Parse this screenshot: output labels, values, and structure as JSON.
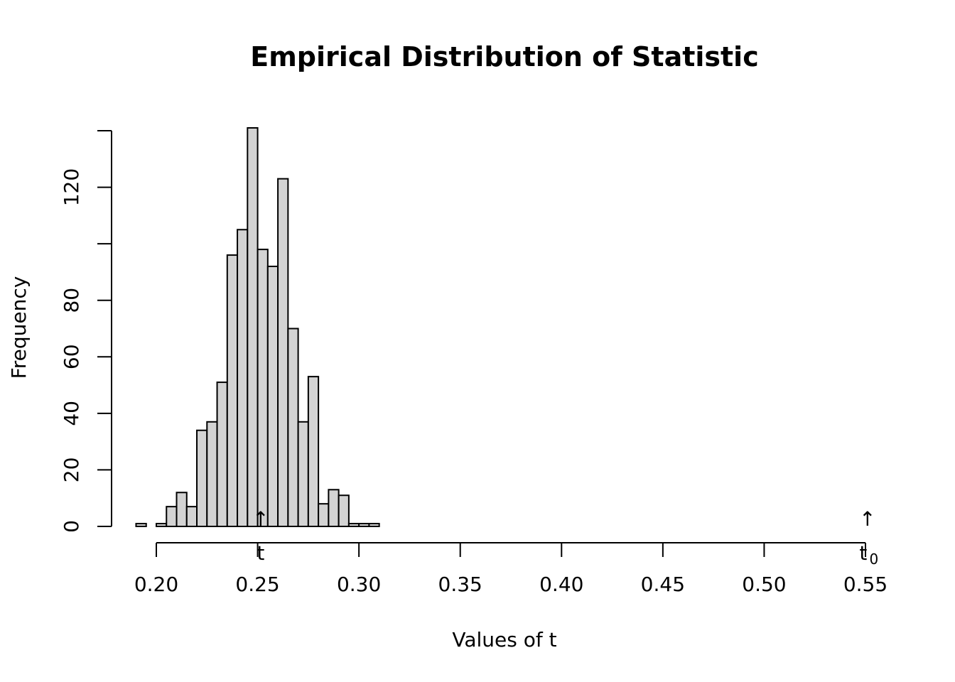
{
  "chart_data": {
    "type": "bar",
    "title": "Empirical Distribution of Statistic",
    "xlabel": "Values of t",
    "ylabel": "Frequency",
    "bin_width": 0.005,
    "bins": [
      {
        "start": 0.19,
        "count": 1
      },
      {
        "start": 0.195,
        "count": 0
      },
      {
        "start": 0.2,
        "count": 1
      },
      {
        "start": 0.205,
        "count": 7
      },
      {
        "start": 0.21,
        "count": 12
      },
      {
        "start": 0.215,
        "count": 7
      },
      {
        "start": 0.22,
        "count": 34
      },
      {
        "start": 0.225,
        "count": 37
      },
      {
        "start": 0.23,
        "count": 51
      },
      {
        "start": 0.235,
        "count": 96
      },
      {
        "start": 0.24,
        "count": 105
      },
      {
        "start": 0.245,
        "count": 141
      },
      {
        "start": 0.25,
        "count": 98
      },
      {
        "start": 0.255,
        "count": 92
      },
      {
        "start": 0.26,
        "count": 123
      },
      {
        "start": 0.265,
        "count": 70
      },
      {
        "start": 0.27,
        "count": 37
      },
      {
        "start": 0.275,
        "count": 53
      },
      {
        "start": 0.28,
        "count": 8
      },
      {
        "start": 0.285,
        "count": 13
      },
      {
        "start": 0.29,
        "count": 11
      },
      {
        "start": 0.295,
        "count": 1
      },
      {
        "start": 0.3,
        "count": 1
      },
      {
        "start": 0.305,
        "count": 1
      }
    ],
    "xlim": [
      0.2,
      0.55
    ],
    "ylim": [
      0,
      140
    ],
    "x_ticks": [
      0.2,
      0.25,
      0.3,
      0.35,
      0.4,
      0.45,
      0.5,
      0.55
    ],
    "x_tick_labels": [
      "0.20",
      "0.25",
      "0.30",
      "0.35",
      "0.40",
      "0.45",
      "0.50",
      "0.55"
    ],
    "y_ticks": [
      0,
      20,
      40,
      60,
      80,
      100,
      120,
      140
    ],
    "y_tick_labels": [
      "0",
      "20",
      "40",
      "60",
      "80",
      "",
      "120",
      ""
    ],
    "annotations": [
      {
        "arrow": "↑",
        "label": "t",
        "subscript": "",
        "x": 0.2515
      },
      {
        "arrow": "↑",
        "label": "t",
        "subscript": "0",
        "x": 0.551
      }
    ],
    "grid": false
  }
}
